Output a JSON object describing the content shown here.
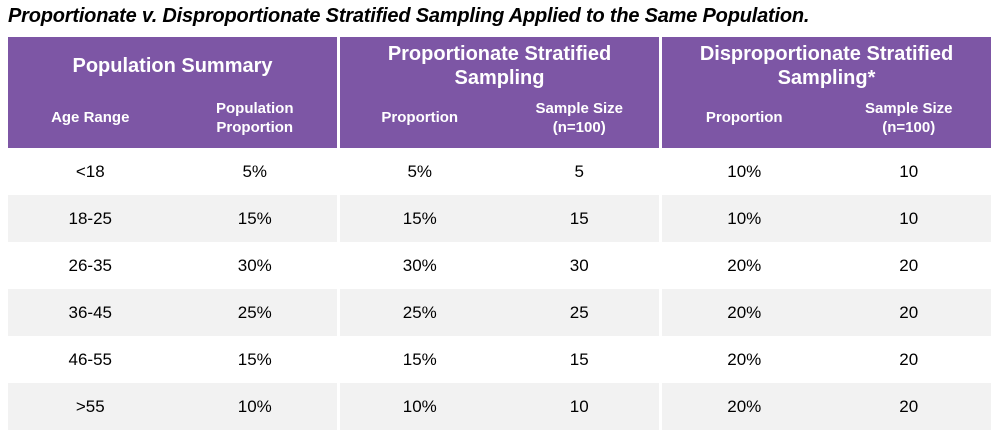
{
  "title": "Proportionate v. Disproportionate Stratified Sampling Applied to the Same Population.",
  "colors": {
    "header_background": "#7D56A5",
    "header_text": "#FFFFFF",
    "row_alt_background": "#F2F2F2",
    "body_text": "#000000"
  },
  "table": {
    "groups": [
      {
        "title": "Population Summary",
        "columns": [
          "Age Range",
          "Population Proportion"
        ]
      },
      {
        "title": "Proportionate Stratified Sampling",
        "columns": [
          "Proportion",
          "Sample Size (n=100)"
        ]
      },
      {
        "title": "Disproportionate Stratified Sampling*",
        "columns": [
          "Proportion",
          "Sample Size (n=100)"
        ]
      }
    ],
    "rows": [
      [
        "<18",
        "5%",
        "5%",
        "5",
        "10%",
        "10"
      ],
      [
        "18-25",
        "15%",
        "15%",
        "15",
        "10%",
        "10"
      ],
      [
        "26-35",
        "30%",
        "30%",
        "30",
        "20%",
        "20"
      ],
      [
        "36-45",
        "25%",
        "25%",
        "25",
        "20%",
        "20"
      ],
      [
        "46-55",
        "15%",
        "15%",
        "15",
        "20%",
        "20"
      ],
      [
        ">55",
        "10%",
        "10%",
        "10",
        "20%",
        "20"
      ]
    ]
  },
  "chart_data": {
    "type": "table",
    "title": "Proportionate v. Disproportionate Stratified Sampling Applied to the Same Population.",
    "column_groups": [
      "Population Summary",
      "Proportionate Stratified Sampling",
      "Disproportionate Stratified Sampling*"
    ],
    "columns": [
      "Age Range",
      "Population Proportion",
      "Proportion",
      "Sample Size (n=100)",
      "Proportion",
      "Sample Size (n=100)"
    ],
    "rows": [
      [
        "<18",
        "5%",
        "5%",
        "5",
        "10%",
        "10"
      ],
      [
        "18-25",
        "15%",
        "15%",
        "15",
        "10%",
        "10"
      ],
      [
        "26-35",
        "30%",
        "30%",
        "30",
        "20%",
        "20"
      ],
      [
        "36-45",
        "25%",
        "25%",
        "25",
        "20%",
        "20"
      ],
      [
        "46-55",
        "15%",
        "15%",
        "15",
        "20%",
        "20"
      ],
      [
        ">55",
        "10%",
        "10%",
        "10",
        "20%",
        "20"
      ]
    ]
  }
}
